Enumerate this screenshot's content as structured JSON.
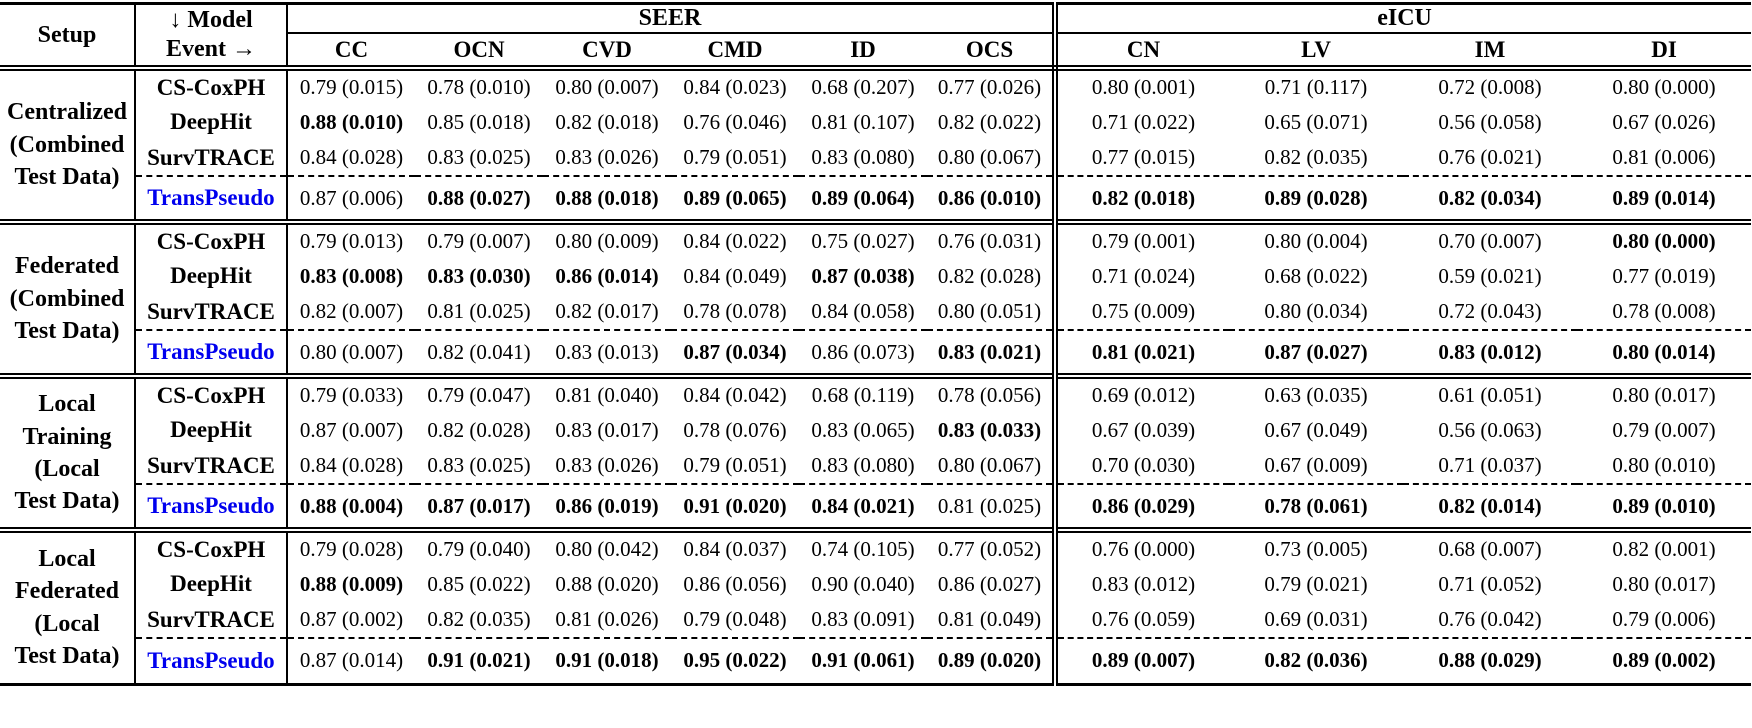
{
  "table": {
    "colors": {
      "transpseudo_blue": "#0000EE",
      "text": "#000000"
    },
    "header": {
      "setup_label": "Setup",
      "model_label_line1": "↓ Model",
      "model_label_line2": "Event →",
      "groups": [
        {
          "label": "SEER",
          "columns": [
            "CC",
            "OCN",
            "CVD",
            "CMD",
            "ID",
            "OCS"
          ]
        },
        {
          "label": "eICU",
          "columns": [
            "CN",
            "LV",
            "IM",
            "DI"
          ]
        }
      ]
    },
    "blocks": [
      {
        "setup_lines": [
          "Centralized",
          "(Combined",
          "Test Data)"
        ],
        "rows": [
          {
            "model": "CS-CoxPH",
            "highlight": false,
            "dashed_top": false,
            "values": [
              "0.79 (0.015)",
              "0.78 (0.010)",
              "0.80 (0.007)",
              "0.84 (0.023)",
              "0.68 (0.207)",
              "0.77 (0.026)",
              "0.80 (0.001)",
              "0.71 (0.117)",
              "0.72 (0.008)",
              "0.80 (0.000)"
            ],
            "bold": [
              false,
              false,
              false,
              false,
              false,
              false,
              false,
              false,
              false,
              false
            ]
          },
          {
            "model": "DeepHit",
            "highlight": false,
            "dashed_top": false,
            "values": [
              "0.88 (0.010)",
              "0.85 (0.018)",
              "0.82 (0.018)",
              "0.76 (0.046)",
              "0.81 (0.107)",
              "0.82 (0.022)",
              "0.71 (0.022)",
              "0.65 (0.071)",
              "0.56 (0.058)",
              "0.67 (0.026)"
            ],
            "bold": [
              true,
              false,
              false,
              false,
              false,
              false,
              false,
              false,
              false,
              false
            ]
          },
          {
            "model": "SurvTRACE",
            "highlight": false,
            "dashed_top": false,
            "values": [
              "0.84 (0.028)",
              "0.83 (0.025)",
              "0.83 (0.026)",
              "0.79 (0.051)",
              "0.83 (0.080)",
              "0.80 (0.067)",
              "0.77 (0.015)",
              "0.82 (0.035)",
              "0.76 (0.021)",
              "0.81 (0.006)"
            ],
            "bold": [
              false,
              false,
              false,
              false,
              false,
              false,
              false,
              false,
              false,
              false
            ]
          },
          {
            "model": "TransPseudo",
            "highlight": true,
            "dashed_top": true,
            "values": [
              "0.87 (0.006)",
              "0.88 (0.027)",
              "0.88 (0.018)",
              "0.89 (0.065)",
              "0.89 (0.064)",
              "0.86 (0.010)",
              "0.82 (0.018)",
              "0.89 (0.028)",
              "0.82 (0.034)",
              "0.89 (0.014)"
            ],
            "bold": [
              false,
              true,
              true,
              true,
              true,
              true,
              true,
              true,
              true,
              true
            ]
          }
        ]
      },
      {
        "setup_lines": [
          "Federated",
          "(Combined",
          "Test Data)"
        ],
        "rows": [
          {
            "model": "CS-CoxPH",
            "highlight": false,
            "dashed_top": false,
            "values": [
              "0.79 (0.013)",
              "0.79 (0.007)",
              "0.80 (0.009)",
              "0.84 (0.022)",
              "0.75 (0.027)",
              "0.76 (0.031)",
              "0.79 (0.001)",
              "0.80 (0.004)",
              "0.70 (0.007)",
              "0.80 (0.000)"
            ],
            "bold": [
              false,
              false,
              false,
              false,
              false,
              false,
              false,
              false,
              false,
              true
            ]
          },
          {
            "model": "DeepHit",
            "highlight": false,
            "dashed_top": false,
            "values": [
              "0.83 (0.008)",
              "0.83 (0.030)",
              "0.86 (0.014)",
              "0.84 (0.049)",
              "0.87 (0.038)",
              "0.82 (0.028)",
              "0.71 (0.024)",
              "0.68 (0.022)",
              "0.59 (0.021)",
              "0.77 (0.019)"
            ],
            "bold": [
              true,
              true,
              true,
              false,
              true,
              false,
              false,
              false,
              false,
              false
            ]
          },
          {
            "model": "SurvTRACE",
            "highlight": false,
            "dashed_top": false,
            "values": [
              "0.82 (0.007)",
              "0.81 (0.025)",
              "0.82 (0.017)",
              "0.78 (0.078)",
              "0.84 (0.058)",
              "0.80 (0.051)",
              "0.75 (0.009)",
              "0.80 (0.034)",
              "0.72 (0.043)",
              "0.78 (0.008)"
            ],
            "bold": [
              false,
              false,
              false,
              false,
              false,
              false,
              false,
              false,
              false,
              false
            ]
          },
          {
            "model": "TransPseudo",
            "highlight": true,
            "dashed_top": true,
            "values": [
              "0.80 (0.007)",
              "0.82 (0.041)",
              "0.83 (0.013)",
              "0.87 (0.034)",
              "0.86 (0.073)",
              "0.83 (0.021)",
              "0.81 (0.021)",
              "0.87 (0.027)",
              "0.83 (0.012)",
              "0.80 (0.014)"
            ],
            "bold": [
              false,
              false,
              false,
              true,
              false,
              true,
              true,
              true,
              true,
              true
            ]
          }
        ]
      },
      {
        "setup_lines": [
          "Local",
          "Training",
          "(Local",
          "Test Data)"
        ],
        "rows": [
          {
            "model": "CS-CoxPH",
            "highlight": false,
            "dashed_top": false,
            "values": [
              "0.79 (0.033)",
              "0.79 (0.047)",
              "0.81 (0.040)",
              "0.84 (0.042)",
              "0.68 (0.119)",
              "0.78 (0.056)",
              "0.69 (0.012)",
              "0.63 (0.035)",
              "0.61 (0.051)",
              "0.80 (0.017)"
            ],
            "bold": [
              false,
              false,
              false,
              false,
              false,
              false,
              false,
              false,
              false,
              false
            ]
          },
          {
            "model": "DeepHit",
            "highlight": false,
            "dashed_top": false,
            "values": [
              "0.87 (0.007)",
              "0.82 (0.028)",
              "0.83 (0.017)",
              "0.78 (0.076)",
              "0.83 (0.065)",
              "0.83 (0.033)",
              "0.67 (0.039)",
              "0.67 (0.049)",
              "0.56 (0.063)",
              "0.79 (0.007)"
            ],
            "bold": [
              false,
              false,
              false,
              false,
              false,
              true,
              false,
              false,
              false,
              false
            ]
          },
          {
            "model": "SurvTRACE",
            "highlight": false,
            "dashed_top": false,
            "values": [
              "0.84 (0.028)",
              "0.83 (0.025)",
              "0.83 (0.026)",
              "0.79 (0.051)",
              "0.83 (0.080)",
              "0.80 (0.067)",
              "0.70 (0.030)",
              "0.67 (0.009)",
              "0.71 (0.037)",
              "0.80 (0.010)"
            ],
            "bold": [
              false,
              false,
              false,
              false,
              false,
              false,
              false,
              false,
              false,
              false
            ]
          },
          {
            "model": "TransPseudo",
            "highlight": true,
            "dashed_top": true,
            "values": [
              "0.88 (0.004)",
              "0.87 (0.017)",
              "0.86 (0.019)",
              "0.91 (0.020)",
              "0.84 (0.021)",
              "0.81 (0.025)",
              "0.86 (0.029)",
              "0.78 (0.061)",
              "0.82 (0.014)",
              "0.89 (0.010)"
            ],
            "bold": [
              true,
              true,
              true,
              true,
              true,
              false,
              true,
              true,
              true,
              true
            ]
          }
        ]
      },
      {
        "setup_lines": [
          "Local",
          "Federated",
          "(Local",
          "Test Data)"
        ],
        "rows": [
          {
            "model": "CS-CoxPH",
            "highlight": false,
            "dashed_top": false,
            "values": [
              "0.79 (0.028)",
              "0.79 (0.040)",
              "0.80 (0.042)",
              "0.84 (0.037)",
              "0.74 (0.105)",
              "0.77 (0.052)",
              "0.76 (0.000)",
              "0.73 (0.005)",
              "0.68 (0.007)",
              "0.82 (0.001)"
            ],
            "bold": [
              false,
              false,
              false,
              false,
              false,
              false,
              false,
              false,
              false,
              false
            ]
          },
          {
            "model": "DeepHit",
            "highlight": false,
            "dashed_top": false,
            "values": [
              "0.88 (0.009)",
              "0.85 (0.022)",
              "0.88 (0.020)",
              "0.86 (0.056)",
              "0.90 (0.040)",
              "0.86 (0.027)",
              "0.83 (0.012)",
              "0.79 (0.021)",
              "0.71 (0.052)",
              "0.80 (0.017)"
            ],
            "bold": [
              true,
              false,
              false,
              false,
              false,
              false,
              false,
              false,
              false,
              false
            ]
          },
          {
            "model": "SurvTRACE",
            "highlight": false,
            "dashed_top": false,
            "values": [
              "0.87 (0.002)",
              "0.82 (0.035)",
              "0.81 (0.026)",
              "0.79 (0.048)",
              "0.83 (0.091)",
              "0.81 (0.049)",
              "0.76 (0.059)",
              "0.69 (0.031)",
              "0.76 (0.042)",
              "0.79 (0.006)"
            ],
            "bold": [
              false,
              false,
              false,
              false,
              false,
              false,
              false,
              false,
              false,
              false
            ]
          },
          {
            "model": "TransPseudo",
            "highlight": true,
            "dashed_top": true,
            "values": [
              "0.87 (0.014)",
              "0.91 (0.021)",
              "0.91 (0.018)",
              "0.95 (0.022)",
              "0.91 (0.061)",
              "0.89 (0.020)",
              "0.89 (0.007)",
              "0.82 (0.036)",
              "0.88 (0.029)",
              "0.89 (0.002)"
            ],
            "bold": [
              false,
              true,
              true,
              true,
              true,
              true,
              true,
              true,
              true,
              true
            ]
          }
        ]
      }
    ]
  }
}
